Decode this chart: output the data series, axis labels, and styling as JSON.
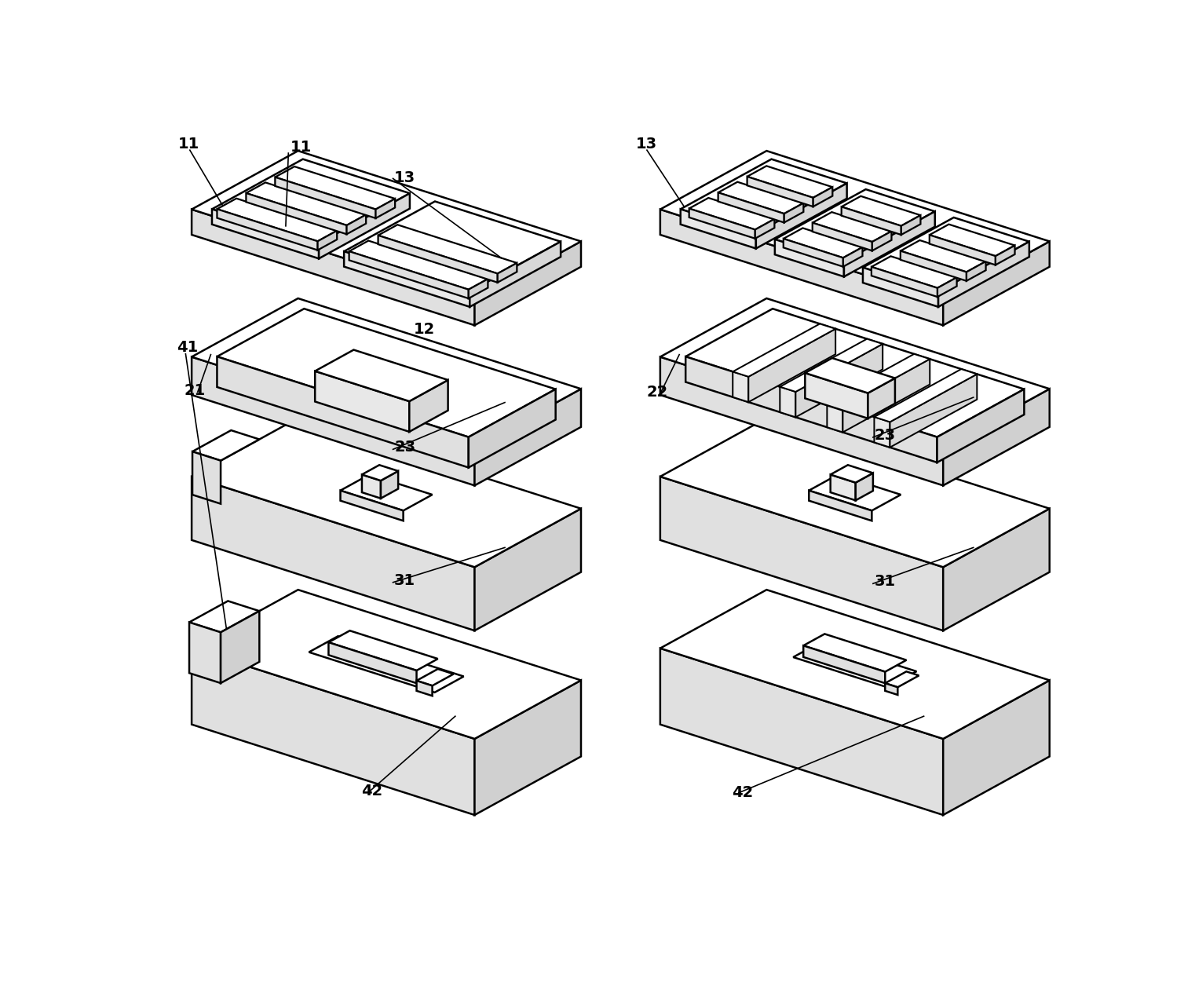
{
  "bg": "#ffffff",
  "lw": 1.8,
  "fw": 15.22,
  "fh": 12.66,
  "dpi": 100,
  "white": "#ffffff",
  "lt_gray": "#f0f0f0",
  "md_gray": "#e0e0e0",
  "dk_gray": "#d0d0d0",
  "fs": 14
}
